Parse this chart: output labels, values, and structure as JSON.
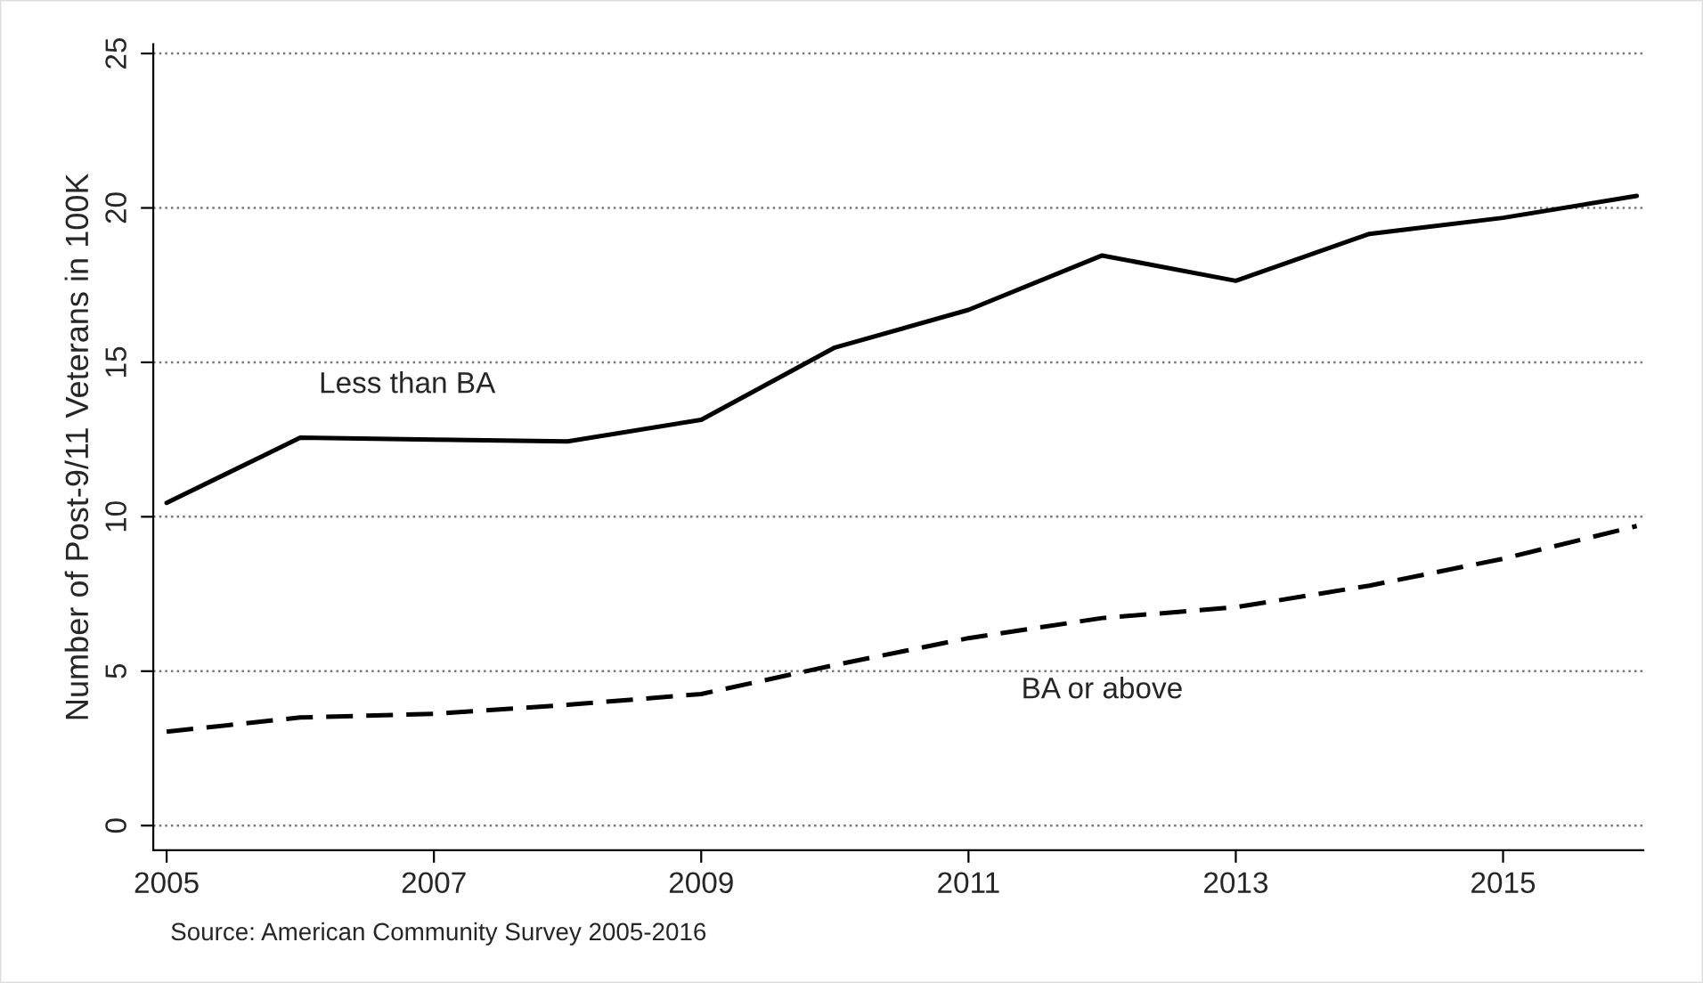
{
  "chart_data": {
    "type": "line",
    "ylabel": "Number of Post-9/11 Veterans in 100K",
    "x": [
      2005,
      2006,
      2007,
      2008,
      2009,
      2010,
      2011,
      2012,
      2013,
      2014,
      2015,
      2016
    ],
    "series": [
      {
        "name": "Less than BA",
        "color": "#000000",
        "line_style": "solid",
        "values": [
          10.45,
          12.56,
          12.5,
          12.44,
          13.14,
          15.48,
          16.7,
          18.46,
          17.64,
          19.16,
          19.68,
          20.39
        ]
      },
      {
        "name": "BA or above",
        "color": "#000000",
        "line_style": "dashed",
        "values": [
          3.04,
          3.5,
          3.62,
          3.91,
          4.26,
          5.2,
          6.07,
          6.72,
          7.07,
          7.77,
          8.64,
          9.7
        ]
      }
    ],
    "xlim": [
      2004.9,
      2016.05
    ],
    "xticks": [
      2005,
      2007,
      2009,
      2011,
      2013,
      2015
    ],
    "ylim": [
      -0.8,
      25.3
    ],
    "yticks": [
      0,
      5,
      10,
      15,
      20,
      25
    ],
    "grid": "y",
    "annotations": [
      "Source: American Community Survey 2005-2016"
    ]
  }
}
